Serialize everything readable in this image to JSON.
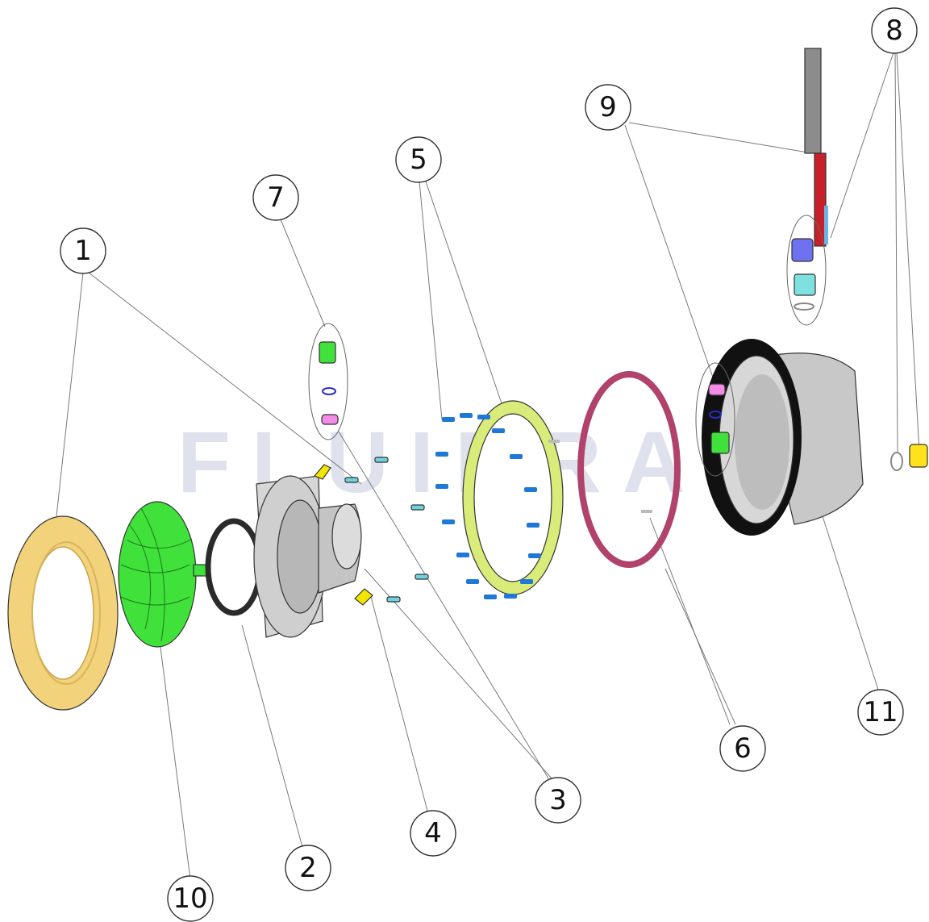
{
  "watermark": "FLUIDRA",
  "colors": {
    "trim_ring": "#f2d27a",
    "lamp": "#3fe13a",
    "gasket_black": "#2b2b2b",
    "housing": "#cfcfcf",
    "screw_light": "#6fd3df",
    "screw_dark": "#1f78d6",
    "clip": "#f2e600",
    "flange_ring": "#d9ec7a",
    "gasket_red": "#b0426c",
    "niche_flange": "#111111",
    "cable_red": "#c8202a",
    "cable_grey": "#8c8c8c",
    "nut_blue": "#6f72f0",
    "gland_cyan": "#7fe0e0",
    "plug_pink": "#f28ae6",
    "plug_yellow": "#ffe21a"
  },
  "callouts": [
    {
      "id": "1",
      "label": "1"
    },
    {
      "id": "2",
      "label": "2"
    },
    {
      "id": "3",
      "label": "3"
    },
    {
      "id": "4",
      "label": "4"
    },
    {
      "id": "5",
      "label": "5"
    },
    {
      "id": "6",
      "label": "6"
    },
    {
      "id": "7",
      "label": "7"
    },
    {
      "id": "8",
      "label": "8"
    },
    {
      "id": "9",
      "label": "9"
    },
    {
      "id": "10",
      "label": "10"
    },
    {
      "id": "11",
      "label": "11"
    }
  ]
}
